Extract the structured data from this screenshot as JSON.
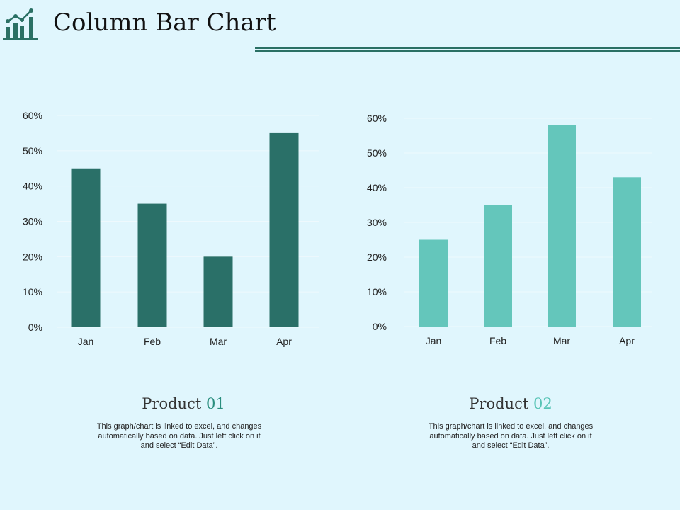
{
  "header": {
    "title": "Column Bar Chart",
    "icon": "bar-chart-trend-icon",
    "accent_color": "#2a7064"
  },
  "chart_data": [
    {
      "type": "bar",
      "categories": [
        "Jan",
        "Feb",
        "Mar",
        "Apr"
      ],
      "values": [
        45,
        35,
        20,
        55
      ],
      "ylim": [
        0,
        60
      ],
      "yticks": [
        "0%",
        "10%",
        "20%",
        "30%",
        "40%",
        "50%",
        "60%"
      ],
      "color": "#2a7068",
      "grid": true
    },
    {
      "type": "bar",
      "categories": [
        "Jan",
        "Feb",
        "Mar",
        "Apr"
      ],
      "values": [
        25,
        35,
        58,
        43
      ],
      "ylim": [
        0,
        60
      ],
      "yticks": [
        "0%",
        "10%",
        "20%",
        "30%",
        "40%",
        "50%",
        "60%"
      ],
      "color": "#64c6bb",
      "grid": true
    }
  ],
  "products": [
    {
      "title_word": "Product",
      "title_number": "01",
      "description": "This graph/chart is linked to excel, and changes automatically based on data. Just left click on it and select “Edit Data”."
    },
    {
      "title_word": "Product",
      "title_number": "02",
      "description": "This graph/chart is linked to excel, and changes automatically based on data. Just left click on it and select “Edit Data”."
    }
  ]
}
